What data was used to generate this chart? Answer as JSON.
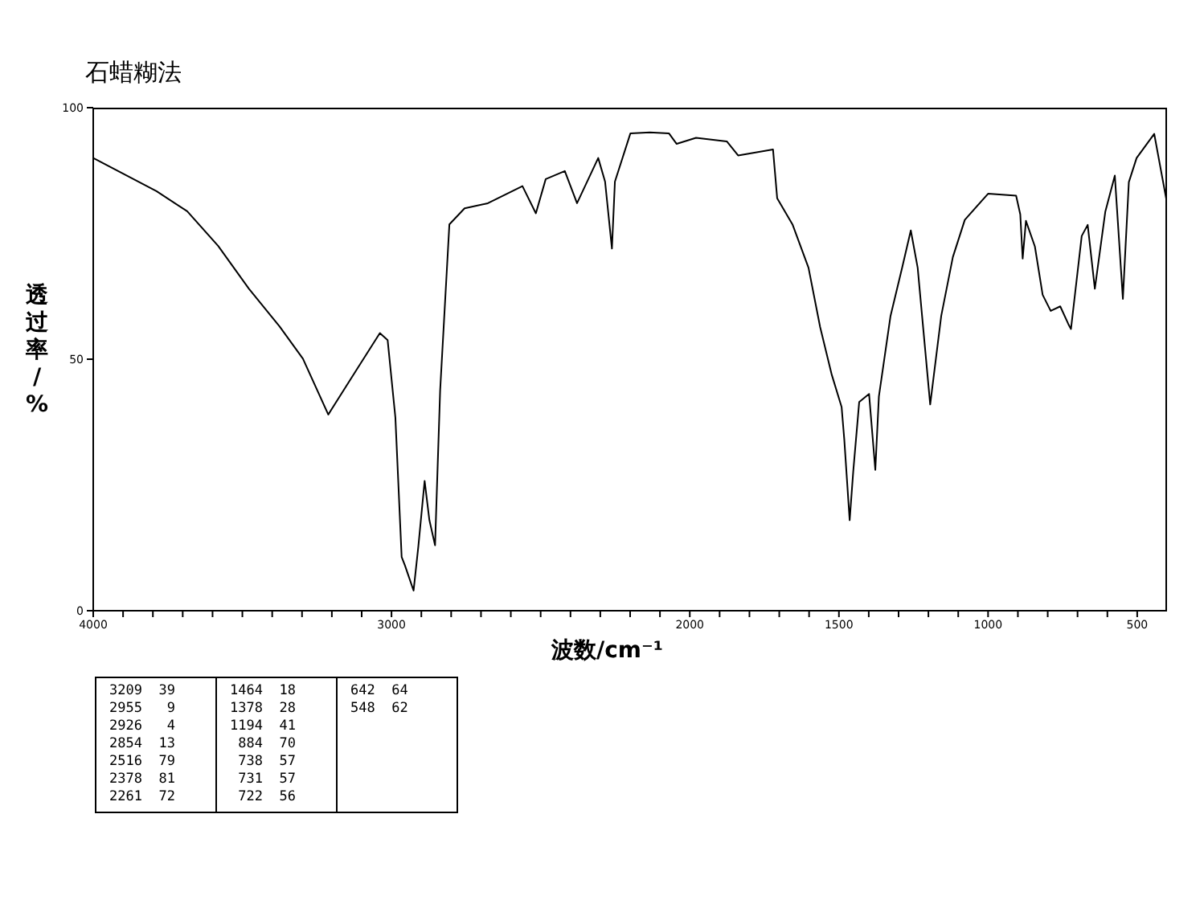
{
  "chart_data": {
    "type": "line",
    "title": "石蜡糊法",
    "xlabel": "波数/cm⁻¹",
    "ylabel": "透过率/%",
    "xlim": [
      4000,
      400
    ],
    "ylim": [
      0,
      100
    ],
    "xticks": [
      4000,
      {
        "value": 3900,
        "label": null
      },
      {
        "value": 3800,
        "label": null
      },
      {
        "value": 3700,
        "label": null
      },
      {
        "value": 3600,
        "label": null
      },
      {
        "value": 3500,
        "label": null
      },
      {
        "value": 3400,
        "label": null
      },
      {
        "value": 3300,
        "label": null
      },
      {
        "value": 3200,
        "label": null
      },
      {
        "value": 3100,
        "label": null
      },
      3000,
      {
        "value": 2900,
        "label": null
      },
      {
        "value": 2800,
        "label": null
      },
      {
        "value": 2700,
        "label": null
      },
      {
        "value": 2600,
        "label": null
      },
      {
        "value": 2500,
        "label": null
      },
      {
        "value": 2400,
        "label": null
      },
      {
        "value": 2300,
        "label": null
      },
      {
        "value": 2200,
        "label": null
      },
      {
        "value": 2100,
        "label": null
      },
      2000,
      {
        "value": 1900,
        "label": null
      },
      {
        "value": 1800,
        "label": null
      },
      {
        "value": 1700,
        "label": null
      },
      {
        "value": 1600,
        "label": null
      },
      1500,
      {
        "value": 1400,
        "label": null
      },
      {
        "value": 1300,
        "label": null
      },
      {
        "value": 1200,
        "label": null
      },
      {
        "value": 1100,
        "label": null
      },
      1000,
      {
        "value": 900,
        "label": null
      },
      {
        "value": 800,
        "label": null
      },
      {
        "value": 700,
        "label": null
      },
      {
        "value": 600,
        "label": null
      },
      500
    ],
    "yticks": [
      0,
      50,
      100
    ],
    "grid": false,
    "legend": false,
    "marker": "none",
    "line_style": "solid",
    "x": [
      4000,
      3788,
      3685,
      3581,
      3478,
      3375,
      3297,
      3212,
      3116,
      3039,
      3013,
      2987,
      2966,
      2955,
      2926,
      2910,
      2889,
      2873,
      2854,
      2837,
      2806,
      2755,
      2677,
      2561,
      2516,
      2483,
      2419,
      2378,
      2307,
      2284,
      2261,
      2251,
      2199,
      2134,
      2070,
      2044,
      1979,
      1876,
      1838,
      1721,
      1707,
      1655,
      1602,
      1563,
      1524,
      1491,
      1482,
      1464,
      1452,
      1432,
      1399,
      1378,
      1366,
      1327,
      1288,
      1259,
      1236,
      1194,
      1157,
      1118,
      1078,
      1000,
      906,
      892,
      884,
      873,
      843,
      817,
      790,
      758,
      731,
      722,
      686,
      666,
      642,
      607,
      575,
      548,
      528,
      502,
      443,
      400
    ],
    "series": [
      {
        "color": "#000000",
        "values": [
          90,
          83.4,
          79.4,
          72.5,
          64,
          56.5,
          50.1,
          39,
          48,
          55.2,
          53.8,
          38.4,
          10.7,
          9,
          4,
          12.8,
          25.8,
          18,
          13,
          43.7,
          76.8,
          80,
          81,
          84.4,
          79,
          85.8,
          87.4,
          81,
          90,
          85.3,
          72,
          85.3,
          94.9,
          95.1,
          94.9,
          92.8,
          94,
          93.3,
          90.5,
          91.7,
          82,
          76.7,
          68.2,
          56.4,
          46.9,
          40.5,
          34,
          18,
          27.7,
          41.5,
          43.1,
          28,
          42.6,
          58.6,
          68.2,
          75.6,
          68.2,
          41,
          58.6,
          70.3,
          77.7,
          82.9,
          82.5,
          78.8,
          70,
          77.5,
          72.4,
          62.8,
          59.6,
          60.5,
          57,
          56,
          74.5,
          76.7,
          64,
          79.3,
          86.5,
          62,
          85.2,
          90,
          94.8,
          81
        ]
      }
    ],
    "annotations": [
      "3209  39",
      "2955   9",
      "2926   4",
      "2854  13",
      "2516  79",
      "2378  81",
      "2261  72",
      "1464  18",
      "1378  28",
      "1194  41",
      " 884  70",
      " 738  57",
      " 731  57",
      " 722  56",
      "642  64",
      "548  62"
    ]
  }
}
